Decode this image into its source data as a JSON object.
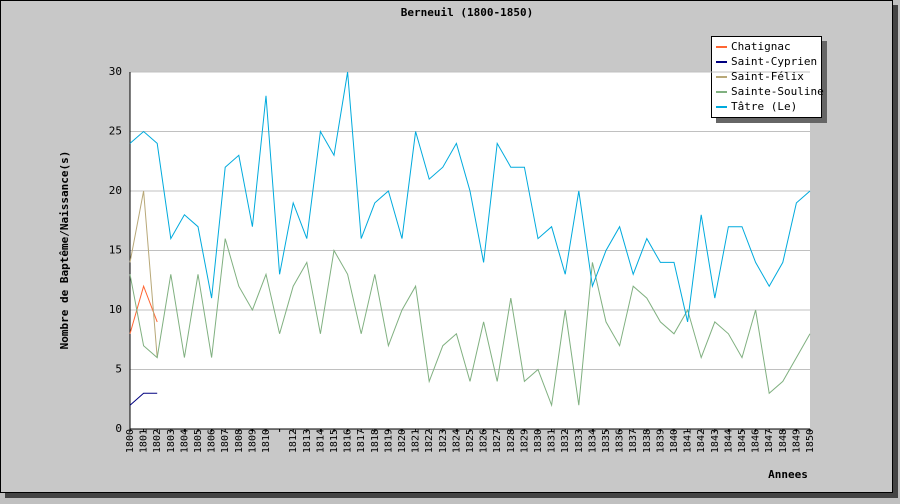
{
  "chart_data": {
    "type": "line",
    "title": "Berneuil (1800-1850)",
    "x_label": "Annees",
    "y_label": "Nombre de Baptême/Naissance(s)",
    "categories": [
      "1800",
      "1801",
      "1802",
      "1803",
      "1804",
      "1805",
      "1806",
      "1807",
      "1808",
      "1809",
      "1810",
      null,
      "1812",
      "1813",
      "1814",
      "1815",
      "1816",
      "1817",
      "1818",
      "1819",
      "1820",
      "1821",
      "1822",
      "1823",
      "1824",
      "1825",
      "1826",
      "1827",
      "1828",
      "1829",
      "1830",
      "1831",
      "1832",
      "1833",
      "1834",
      "1835",
      "1836",
      "1837",
      "1838",
      "1839",
      "1840",
      "1841",
      "1842",
      "1843",
      "1844",
      "1845",
      "1846",
      "1847",
      "1848",
      "1849",
      "1850"
    ],
    "series": [
      {
        "name": "Chatignac",
        "color": "#ff6633",
        "values": [
          8,
          12,
          9,
          null,
          null,
          null,
          null,
          null,
          null,
          null,
          null,
          null,
          null,
          null,
          null,
          null,
          null,
          null,
          null,
          null,
          null,
          null,
          null,
          null,
          null,
          null,
          null,
          null,
          null,
          null,
          null,
          null,
          null,
          null,
          null,
          null,
          null,
          null,
          null,
          null,
          null,
          null,
          null,
          null,
          null,
          null,
          null,
          null,
          null,
          null,
          null
        ]
      },
      {
        "name": "Saint-Cyprien",
        "color": "#000080",
        "values": [
          2,
          3,
          3,
          null,
          null,
          null,
          null,
          null,
          null,
          null,
          null,
          null,
          null,
          null,
          null,
          null,
          null,
          null,
          null,
          null,
          null,
          null,
          null,
          null,
          null,
          null,
          null,
          null,
          null,
          null,
          null,
          null,
          null,
          null,
          null,
          null,
          null,
          null,
          null,
          null,
          null,
          null,
          null,
          null,
          null,
          null,
          null,
          null,
          null,
          null,
          null
        ]
      },
      {
        "name": "Saint-Félix",
        "color": "#b8a878",
        "values": [
          14,
          20,
          6,
          null,
          null,
          null,
          null,
          null,
          null,
          null,
          null,
          null,
          null,
          null,
          null,
          null,
          null,
          null,
          null,
          null,
          null,
          null,
          null,
          null,
          null,
          null,
          null,
          null,
          null,
          null,
          null,
          null,
          null,
          null,
          null,
          null,
          null,
          null,
          null,
          null,
          null,
          null,
          null,
          null,
          null,
          null,
          null,
          null,
          null,
          null,
          null
        ]
      },
      {
        "name": "Sainte-Souline",
        "color": "#80b080",
        "values": [
          13,
          7,
          6,
          13,
          6,
          13,
          6,
          16,
          12,
          10,
          13,
          8,
          12,
          14,
          8,
          15,
          13,
          8,
          13,
          7,
          10,
          12,
          4,
          7,
          8,
          4,
          9,
          4,
          11,
          4,
          5,
          2,
          10,
          2,
          14,
          9,
          7,
          12,
          11,
          9,
          8,
          10,
          6,
          9,
          8,
          6,
          10,
          3,
          4,
          6,
          8
        ]
      },
      {
        "name": "Tâtre (Le)",
        "color": "#00aadd",
        "values": [
          24,
          25,
          24,
          16,
          18,
          17,
          11,
          22,
          23,
          17,
          28,
          13,
          19,
          16,
          25,
          23,
          30,
          16,
          19,
          20,
          16,
          25,
          21,
          22,
          24,
          20,
          14,
          24,
          22,
          22,
          16,
          17,
          13,
          20,
          12,
          15,
          17,
          13,
          16,
          14,
          14,
          9,
          18,
          11,
          17,
          17,
          14,
          12,
          14,
          19,
          20
        ]
      }
    ],
    "ylim": [
      0,
      30
    ],
    "yticks": [
      0,
      5,
      10,
      15,
      20,
      25,
      30
    ],
    "grid": true
  }
}
